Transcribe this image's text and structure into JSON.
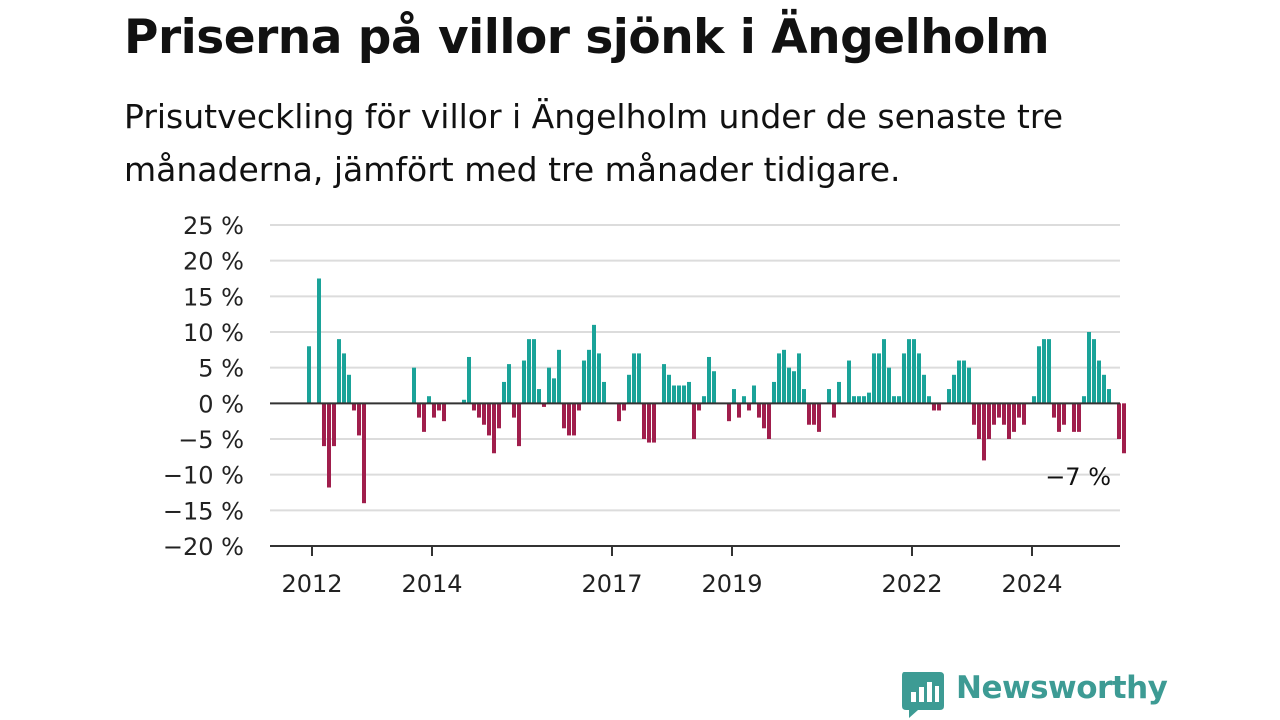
{
  "header": {
    "title": "Priserna på villor sjönk i Ängelholm",
    "subtitle": "Prisutveckling för villor i Ängelholm under de senaste tre månaderna, jämfört med tre månader tidigare."
  },
  "brand": {
    "name": "Newsworthy",
    "color": "#3d9b94",
    "icon": "newsworthy-logo-icon"
  },
  "chart_data": {
    "type": "bar",
    "x_start": "2012-01",
    "x_step": "month",
    "values": [
      8,
      0,
      17.5,
      -6,
      -11.8,
      -6,
      9,
      7,
      4,
      -1,
      -4.5,
      -14,
      0,
      0,
      0,
      0,
      0,
      0,
      0,
      0,
      0,
      5,
      -2,
      -4,
      1,
      -2,
      -1,
      -2.5,
      0,
      0,
      0,
      0.5,
      6.5,
      -1,
      -2,
      -3,
      -4.5,
      -7,
      -3.5,
      3,
      5.5,
      -2,
      -6,
      6,
      9,
      9,
      2,
      -0.5,
      5,
      3.5,
      7.5,
      -3.5,
      -4.5,
      -4.5,
      -1,
      6,
      7.5,
      11,
      7,
      3,
      0,
      0,
      -2.5,
      -1,
      4,
      7,
      7,
      -5,
      -5.5,
      -5.5,
      0,
      5.5,
      4,
      2.5,
      2.5,
      2.5,
      3,
      -5,
      -1,
      1,
      6.5,
      4.5,
      0,
      0,
      -2.5,
      2,
      -2,
      1,
      -1,
      2.5,
      -2,
      -3.5,
      -5,
      3,
      7,
      7.5,
      5,
      4.5,
      7,
      2,
      -3,
      -3,
      -4,
      0,
      2,
      -2,
      3,
      0,
      6,
      1,
      1,
      1,
      1.5,
      7,
      7,
      9,
      5,
      1,
      1,
      7,
      9,
      9,
      7,
      4,
      1,
      -1,
      -1,
      0,
      2,
      4,
      6,
      6,
      5,
      -3,
      -5,
      -8,
      -5,
      -3,
      -2,
      -3,
      -5,
      -4,
      -2,
      -3,
      0,
      1,
      8,
      9,
      9,
      -2,
      -4,
      -3,
      0,
      -4,
      -4,
      1,
      10,
      9,
      6,
      4,
      2,
      0,
      -5,
      -7
    ],
    "positive_color": "#1aa399",
    "negative_color": "#a01e4c",
    "ylim": [
      -20,
      25
    ],
    "y_ticks": [
      25,
      20,
      15,
      10,
      5,
      0,
      -5,
      -10,
      -15,
      -20
    ],
    "y_tick_labels": [
      "25 %",
      "20 %",
      "15 %",
      "10 %",
      "5 %",
      "0 %",
      "−5 %",
      "−10 %",
      "−15 %",
      "−20 %"
    ],
    "x_ticks": [
      "2012",
      "2014",
      "2017",
      "2019",
      "2022",
      "2024"
    ],
    "x_tick_month_index": [
      1,
      25,
      61,
      85,
      121,
      145
    ],
    "last_value_label": "−7 %",
    "grid": true,
    "xlabel": "",
    "ylabel": ""
  }
}
